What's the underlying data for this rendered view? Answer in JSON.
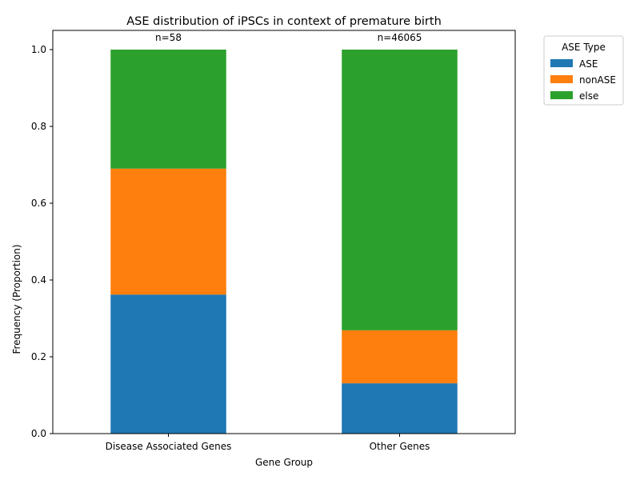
{
  "chart_data": {
    "type": "bar",
    "stacked": true,
    "title": "ASE distribution of iPSCs in context of premature birth",
    "xlabel": "Gene Group",
    "ylabel": "Frequency (Proportion)",
    "categories": [
      "Disease Associated Genes",
      "Other Genes"
    ],
    "bar_annotations": [
      "n=58",
      "n=46065"
    ],
    "series": [
      {
        "name": "ASE",
        "color": "#1f77b4",
        "values": [
          0.362,
          0.131
        ]
      },
      {
        "name": "nonASE",
        "color": "#ff7f0e",
        "values": [
          0.328,
          0.138
        ]
      },
      {
        "name": "else",
        "color": "#2ca02c",
        "values": [
          0.31,
          0.731
        ]
      }
    ],
    "ylim": [
      0,
      1.05
    ],
    "yticks": [
      0.0,
      0.2,
      0.4,
      0.6,
      0.8,
      1.0
    ],
    "ytick_labels": [
      "0.0",
      "0.2",
      "0.4",
      "0.6",
      "0.8",
      "1.0"
    ],
    "legend": {
      "title": "ASE Type",
      "placement": "outside-top-right"
    },
    "grid": false
  }
}
